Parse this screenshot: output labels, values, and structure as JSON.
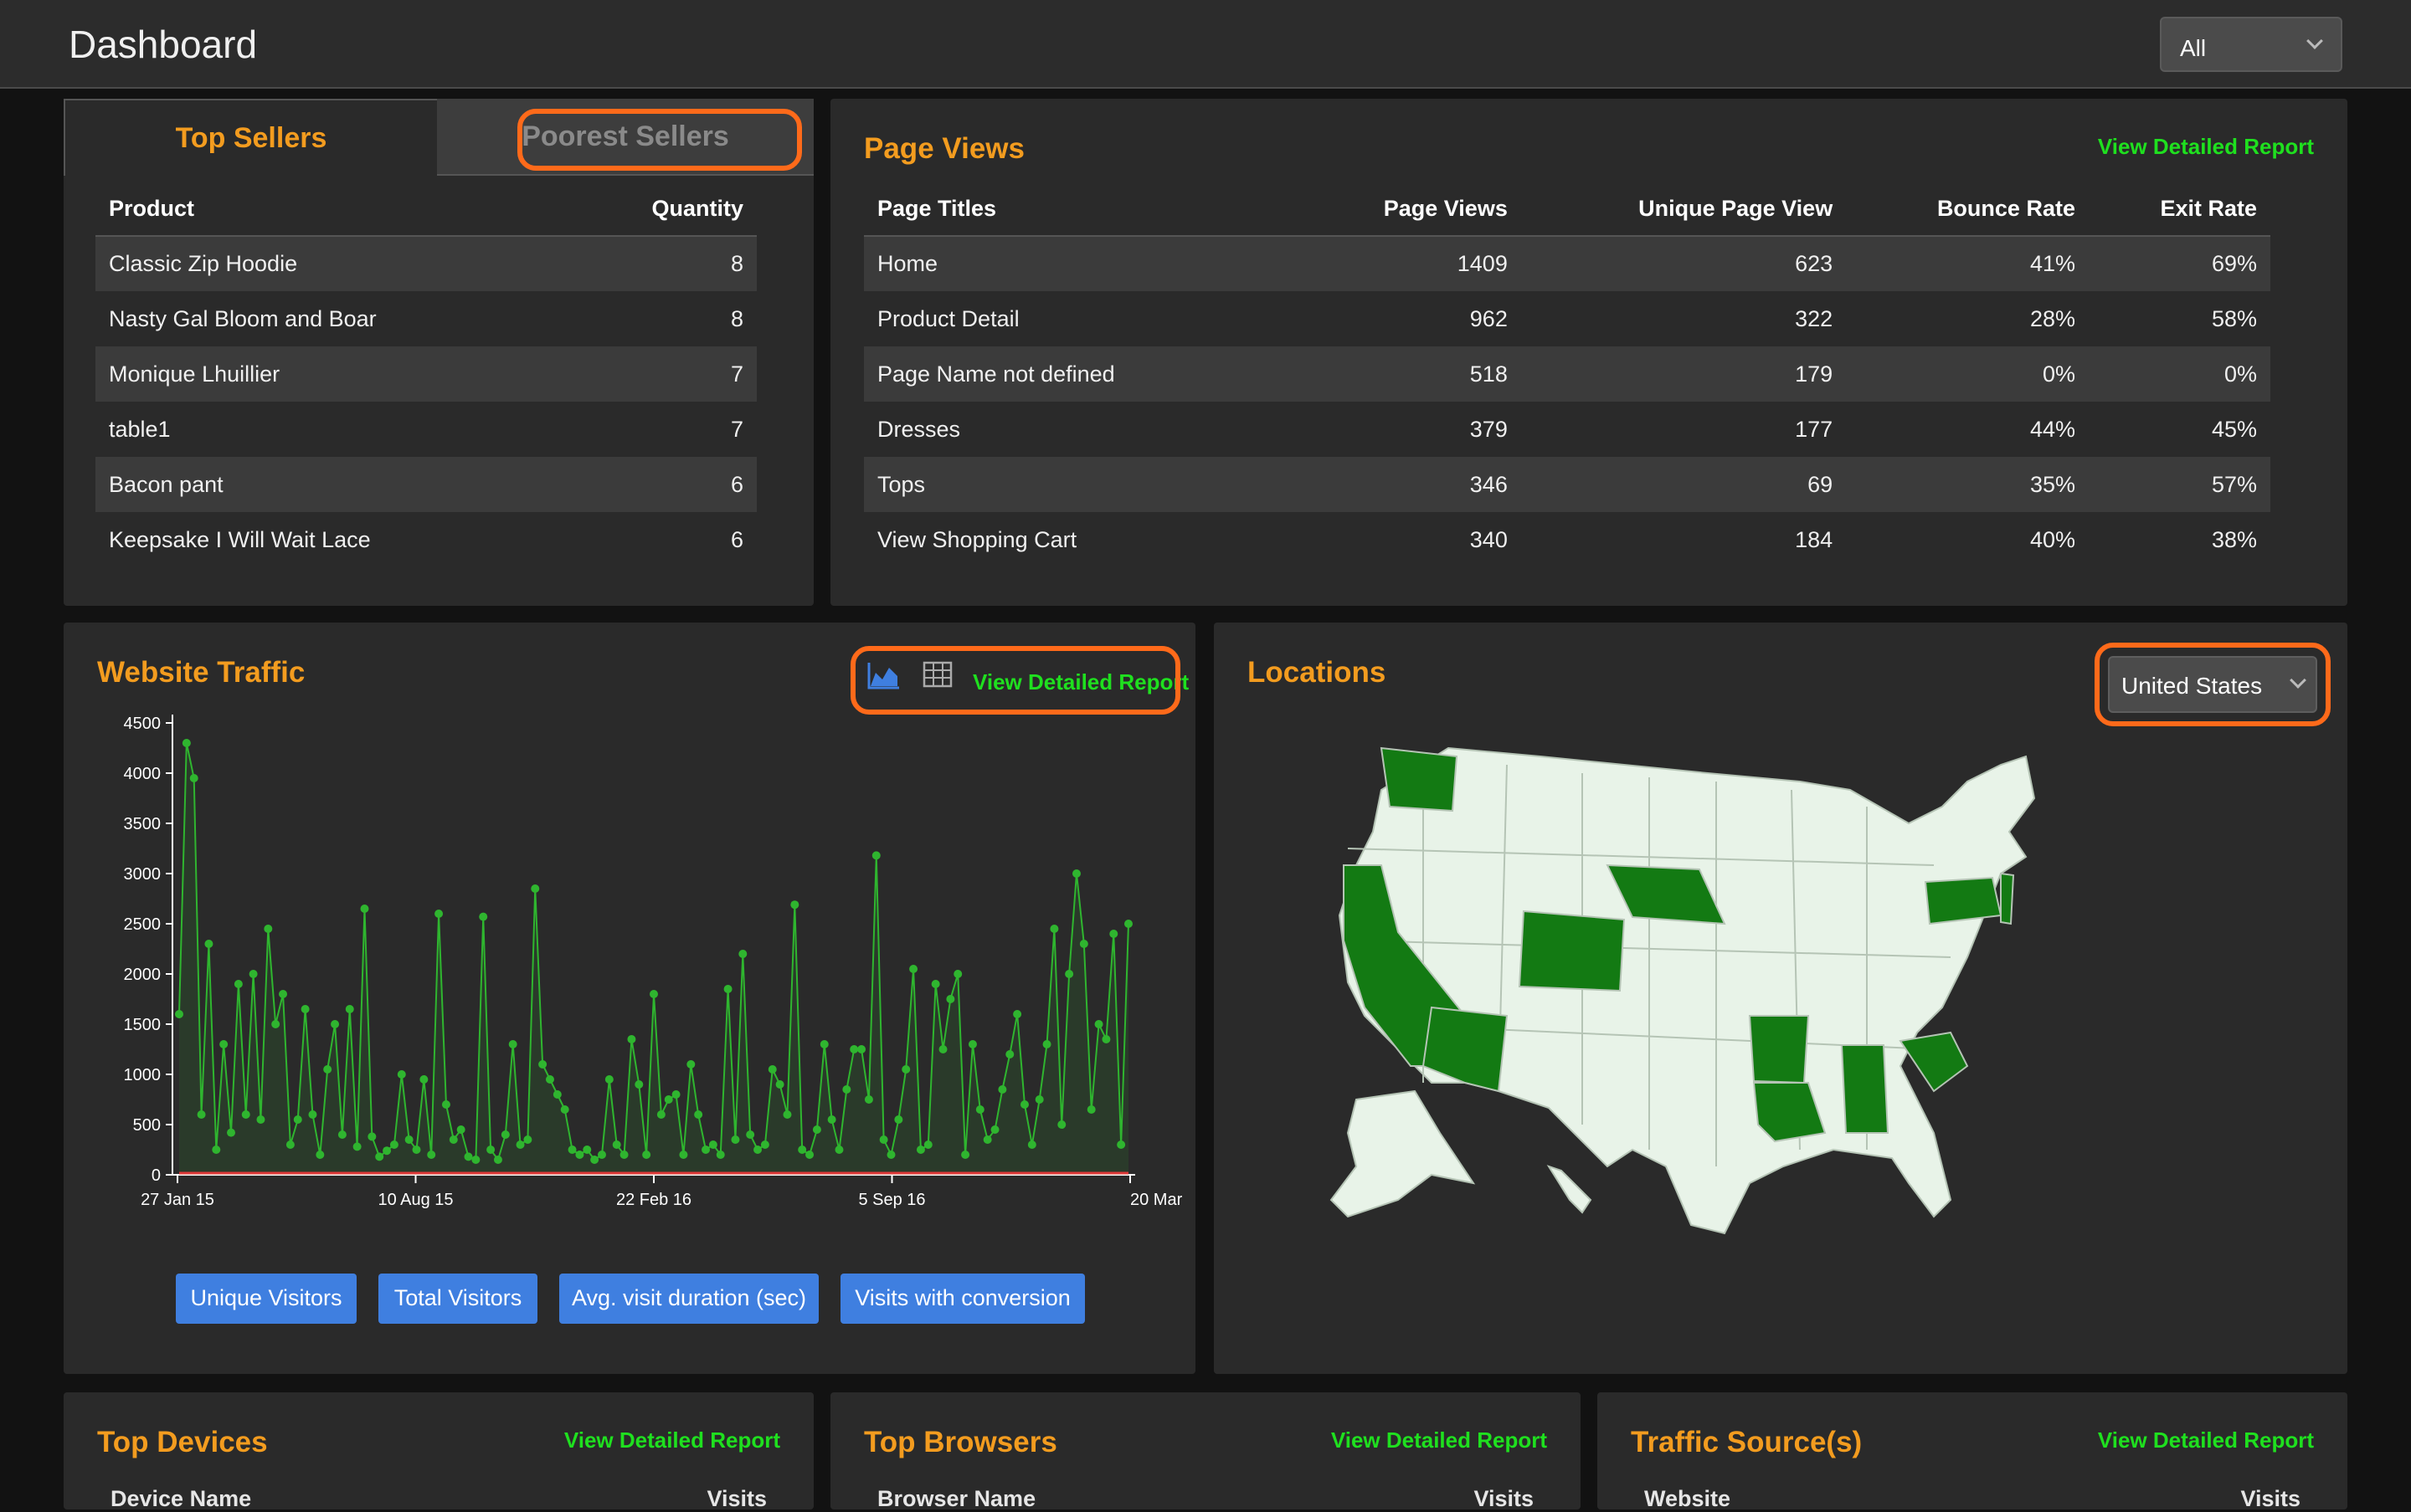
{
  "header": {
    "title": "Dashboard",
    "filter_value": "All"
  },
  "sellers": {
    "tabs": [
      "Top Sellers",
      "Poorest Sellers"
    ],
    "columns": [
      "Product",
      "Quantity"
    ],
    "rows": [
      {
        "product": "Classic Zip Hoodie",
        "qty": "8"
      },
      {
        "product": "Nasty Gal Bloom and Boar",
        "qty": "8"
      },
      {
        "product": "Monique Lhuillier",
        "qty": "7"
      },
      {
        "product": "table1",
        "qty": "7"
      },
      {
        "product": "Bacon pant",
        "qty": "6"
      },
      {
        "product": "Keepsake I Will Wait Lace",
        "qty": "6"
      }
    ]
  },
  "page_views": {
    "title": "Page Views",
    "link": "View Detailed Report",
    "columns": [
      "Page Titles",
      "Page Views",
      "Unique Page View",
      "Bounce Rate",
      "Exit Rate"
    ],
    "rows": [
      [
        "Home",
        "1409",
        "623",
        "41%",
        "69%"
      ],
      [
        "Product Detail",
        "962",
        "322",
        "28%",
        "58%"
      ],
      [
        "Page Name not defined",
        "518",
        "179",
        "0%",
        "0%"
      ],
      [
        "Dresses",
        "379",
        "177",
        "44%",
        "45%"
      ],
      [
        "Tops",
        "346",
        "69",
        "35%",
        "57%"
      ],
      [
        "View Shopping Cart",
        "340",
        "184",
        "40%",
        "38%"
      ]
    ]
  },
  "traffic": {
    "title": "Website Traffic",
    "link": "View Detailed Report",
    "icons": [
      "area-chart-icon",
      "table-icon"
    ],
    "buttons": [
      "Unique Visitors",
      "Total Visitors",
      "Avg. visit duration (sec)",
      "Visits with conversion"
    ]
  },
  "locations": {
    "title": "Locations",
    "country": "United States"
  },
  "bottom": {
    "devices": {
      "title": "Top Devices",
      "link": "View Detailed Report",
      "col1": "Device Name",
      "col2": "Visits"
    },
    "browsers": {
      "title": "Top Browsers",
      "link": "View Detailed Report",
      "col1": "Browser Name",
      "col2": "Visits"
    },
    "sources": {
      "title": "Traffic Source(s)",
      "link": "View Detailed Report",
      "col1": "Website",
      "col2": "Visits"
    }
  },
  "colors": {
    "accent": "#f39c1f",
    "link": "#1fe01f",
    "button": "#3f7fe0",
    "highlight": "#ff6a1a",
    "map_active": "#137a13",
    "map_inactive": "#e8f3e8"
  },
  "chart_data": {
    "type": "line",
    "x_tick_labels": [
      "27 Jan 15",
      "10 Aug 15",
      "22 Feb 16",
      "5 Sep 16",
      "20 Mar"
    ],
    "y_ticks": [
      0,
      500,
      1000,
      1500,
      2000,
      2500,
      3000,
      3500,
      4000,
      4500
    ],
    "ylim": [
      0,
      4500
    ],
    "series": [
      {
        "color": "#2fb52f",
        "values": [
          1600,
          4300,
          3950,
          600,
          2300,
          250,
          1300,
          420,
          1900,
          600,
          2000,
          550,
          2450,
          1500,
          1800,
          300,
          550,
          1650,
          600,
          200,
          1050,
          1500,
          400,
          1650,
          280,
          2650,
          380,
          180,
          240,
          300,
          1000,
          350,
          250,
          950,
          200,
          2600,
          700,
          350,
          450,
          180,
          150,
          2570,
          250,
          150,
          400,
          1300,
          300,
          350,
          2850,
          1100,
          950,
          800,
          650,
          250,
          200,
          250,
          150,
          200,
          950,
          300,
          200,
          1350,
          900,
          200,
          1800,
          600,
          750,
          800,
          200,
          1100,
          600,
          250,
          300,
          200,
          1850,
          350,
          2200,
          400,
          250,
          300,
          1050,
          900,
          600,
          2690,
          250,
          200,
          450,
          1300,
          550,
          250,
          850,
          1250,
          1250,
          750,
          3180,
          350,
          200,
          550,
          1050,
          2050,
          250,
          300,
          1900,
          1250,
          1750,
          2000,
          200,
          1300,
          650,
          350,
          450,
          850,
          1200,
          1600,
          700,
          300,
          750,
          1300,
          2450,
          500,
          2000,
          3000,
          2300,
          650,
          1500,
          1350,
          2400,
          300,
          2500
        ]
      },
      {
        "color": "#e03a3a",
        "values": [
          0,
          0,
          0,
          0,
          0,
          0,
          0,
          0,
          0,
          0
        ]
      }
    ]
  }
}
